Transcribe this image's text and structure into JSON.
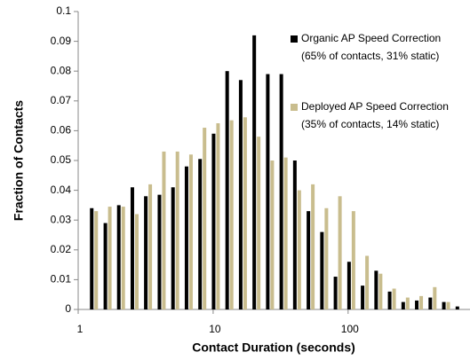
{
  "chart_data": {
    "type": "bar",
    "x_label": "Contact Duration (seconds)",
    "y_label": "Fraction of Contacts",
    "x": [
      1.26,
      1.59,
      2,
      2.52,
      3.17,
      4,
      5.04,
      6.35,
      8,
      10.08,
      12.7,
      16,
      20.16,
      25.4,
      32,
      40.3,
      50.8,
      64,
      80.6,
      101.6,
      128,
      161.3,
      203.2,
      256,
      322.5,
      406.4,
      512,
      645.1
    ],
    "xlog": true,
    "xlim": [
      1,
      800
    ],
    "xticks": [
      1,
      10,
      100
    ],
    "ylim": [
      0,
      0.1
    ],
    "yticks": [
      0,
      0.01,
      0.02,
      0.03,
      0.04,
      0.05,
      0.06,
      0.07,
      0.08,
      0.09,
      0.1
    ],
    "series": [
      {
        "name": "Organic AP Speed Correction",
        "legend_subtitle": "(65% of contacts, 31% static)",
        "color": "#000000",
        "values": [
          0.034,
          0.029,
          0.035,
          0.041,
          0.038,
          0.0385,
          0.041,
          0.048,
          0.0505,
          0.059,
          0.08,
          0.077,
          0.092,
          0.079,
          0.079,
          0.05,
          0.033,
          0.026,
          0.011,
          0.016,
          0.008,
          0.013,
          0.006,
          0.0025,
          0.003,
          0.004,
          0.0025,
          0.001
        ]
      },
      {
        "name": "Deployed AP Speed Correction",
        "legend_subtitle": "(35% of contacts, 14% static)",
        "color": "#c9bd8e",
        "values": [
          0.033,
          0.0345,
          0.0345,
          0.032,
          0.042,
          0.053,
          0.053,
          0.052,
          0.061,
          0.0625,
          0.0635,
          0.0645,
          0.058,
          0.05,
          0.051,
          0.04,
          0.042,
          0.034,
          0.038,
          0.033,
          0.018,
          0.012,
          0.007,
          0.004,
          0.0045,
          0.0075,
          0.0025,
          0
        ]
      }
    ]
  }
}
